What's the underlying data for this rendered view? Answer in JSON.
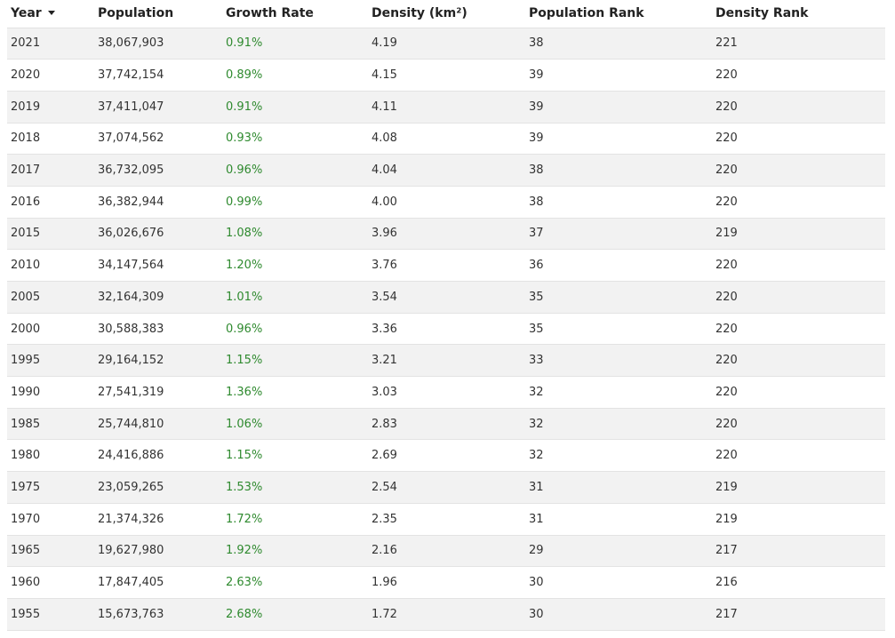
{
  "table": {
    "headers": [
      "Year",
      "Population",
      "Growth Rate",
      "Density (km²)",
      "Population Rank",
      "Density Rank"
    ],
    "sort": {
      "column": "Year",
      "direction": "descending",
      "indicator_icon": "caret-down-icon"
    },
    "colors": {
      "growth_text": "#2f8a2f",
      "stripe": "#f2f2f2"
    },
    "rows": [
      [
        "2021",
        "38,067,903",
        "0.91%",
        "4.19",
        "38",
        "221"
      ],
      [
        "2020",
        "37,742,154",
        "0.89%",
        "4.15",
        "39",
        "220"
      ],
      [
        "2019",
        "37,411,047",
        "0.91%",
        "4.11",
        "39",
        "220"
      ],
      [
        "2018",
        "37,074,562",
        "0.93%",
        "4.08",
        "39",
        "220"
      ],
      [
        "2017",
        "36,732,095",
        "0.96%",
        "4.04",
        "38",
        "220"
      ],
      [
        "2016",
        "36,382,944",
        "0.99%",
        "4.00",
        "38",
        "220"
      ],
      [
        "2015",
        "36,026,676",
        "1.08%",
        "3.96",
        "37",
        "219"
      ],
      [
        "2010",
        "34,147,564",
        "1.20%",
        "3.76",
        "36",
        "220"
      ],
      [
        "2005",
        "32,164,309",
        "1.01%",
        "3.54",
        "35",
        "220"
      ],
      [
        "2000",
        "30,588,383",
        "0.96%",
        "3.36",
        "35",
        "220"
      ],
      [
        "1995",
        "29,164,152",
        "1.15%",
        "3.21",
        "33",
        "220"
      ],
      [
        "1990",
        "27,541,319",
        "1.36%",
        "3.03",
        "32",
        "220"
      ],
      [
        "1985",
        "25,744,810",
        "1.06%",
        "2.83",
        "32",
        "220"
      ],
      [
        "1980",
        "24,416,886",
        "1.15%",
        "2.69",
        "32",
        "220"
      ],
      [
        "1975",
        "23,059,265",
        "1.53%",
        "2.54",
        "31",
        "219"
      ],
      [
        "1970",
        "21,374,326",
        "1.72%",
        "2.35",
        "31",
        "219"
      ],
      [
        "1965",
        "19,627,980",
        "1.92%",
        "2.16",
        "29",
        "217"
      ],
      [
        "1960",
        "17,847,405",
        "2.63%",
        "1.96",
        "30",
        "216"
      ],
      [
        "1955",
        "15,673,763",
        "2.68%",
        "1.72",
        "30",
        "217"
      ]
    ]
  }
}
